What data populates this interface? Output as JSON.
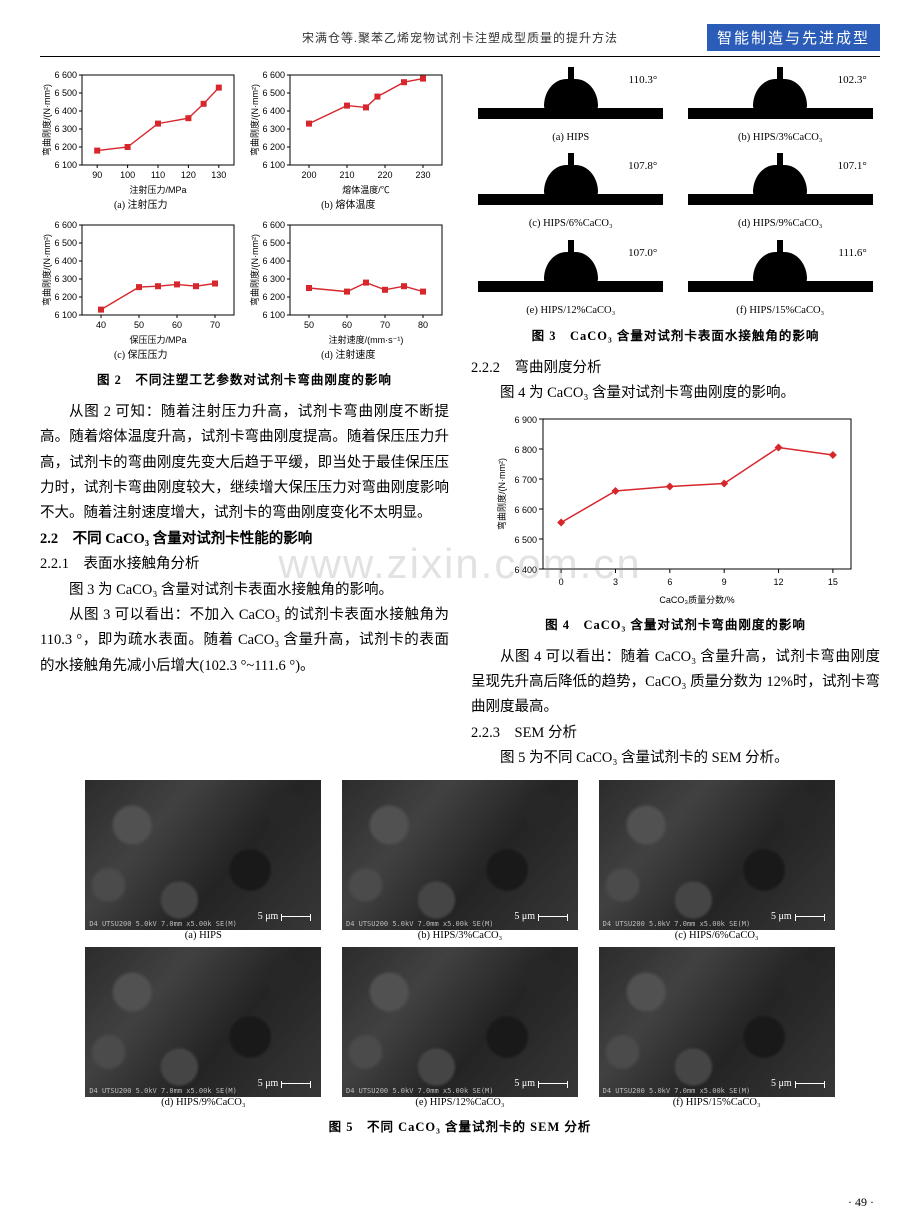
{
  "header": {
    "title": "宋满仓等.聚苯乙烯宠物试剂卡注塑成型质量的提升方法",
    "badge": "智能制造与先进成型"
  },
  "watermark": "www.zixin.com.cn",
  "page_number": "· 49 ·",
  "fig2": {
    "caption": "图 2　不同注塑工艺参数对试剂卡弯曲刚度的影响",
    "ylabel": "弯曲刚度/(N·mm²)",
    "panels": {
      "a": {
        "sub": "(a) 注射压力",
        "xlabel": "注射压力/MPa",
        "xticks": [
          90,
          100,
          110,
          120,
          130
        ],
        "yticks": [
          6100,
          6200,
          6300,
          6400,
          6500,
          6600
        ],
        "ylim": [
          6100,
          6600
        ],
        "xlim": [
          85,
          135
        ],
        "points": [
          [
            90,
            6180
          ],
          [
            100,
            6200
          ],
          [
            110,
            6330
          ],
          [
            120,
            6360
          ],
          [
            125,
            6440
          ],
          [
            130,
            6530
          ]
        ],
        "color": "#d7262c"
      },
      "b": {
        "sub": "(b) 熔体温度",
        "xlabel": "熔体温度/℃",
        "xticks": [
          200,
          210,
          220,
          230
        ],
        "yticks": [
          6100,
          6200,
          6300,
          6400,
          6500,
          6600
        ],
        "ylim": [
          6100,
          6600
        ],
        "xlim": [
          195,
          235
        ],
        "points": [
          [
            200,
            6330
          ],
          [
            210,
            6430
          ],
          [
            215,
            6420
          ],
          [
            218,
            6480
          ],
          [
            225,
            6560
          ],
          [
            230,
            6580
          ]
        ],
        "color": "#d7262c"
      },
      "c": {
        "sub": "(c) 保压压力",
        "xlabel": "保压压力/MPa",
        "xticks": [
          40,
          50,
          60,
          70
        ],
        "yticks": [
          6100,
          6200,
          6300,
          6400,
          6500,
          6600
        ],
        "ylim": [
          6100,
          6600
        ],
        "xlim": [
          35,
          75
        ],
        "points": [
          [
            40,
            6130
          ],
          [
            50,
            6255
          ],
          [
            55,
            6260
          ],
          [
            60,
            6270
          ],
          [
            65,
            6260
          ],
          [
            70,
            6275
          ]
        ],
        "color": "#d7262c"
      },
      "d": {
        "sub": "(d) 注射速度",
        "xlabel": "注射速度/(mm·s⁻¹)",
        "xticks": [
          50,
          60,
          70,
          80
        ],
        "yticks": [
          6100,
          6200,
          6300,
          6400,
          6500,
          6600
        ],
        "ylim": [
          6100,
          6600
        ],
        "xlim": [
          45,
          85
        ],
        "points": [
          [
            50,
            6250
          ],
          [
            60,
            6230
          ],
          [
            65,
            6280
          ],
          [
            70,
            6240
          ],
          [
            75,
            6260
          ],
          [
            80,
            6230
          ]
        ],
        "color": "#d7262c"
      }
    }
  },
  "left_text": {
    "p1": "从图 2 可知：随着注射压力升高，试剂卡弯曲刚度不断提高。随着熔体温度升高，试剂卡弯曲刚度提高。随着保压压力升高，试剂卡的弯曲刚度先变大后趋于平缓，即当处于最佳保压压力时，试剂卡弯曲刚度较大，继续增大保压压力对弯曲刚度影响不大。随着注射速度增大，试剂卡的弯曲刚度变化不太明显。",
    "sec22": "2.2　不同 CaCO₃ 含量对试剂卡性能的影响",
    "sec221": "2.2.1　表面水接触角分析",
    "p2": "图 3 为 CaCO₃ 含量对试剂卡表面水接触角的影响。",
    "p3": "从图 3 可以看出：不加入 CaCO₃ 的试剂卡表面水接触角为 110.3 °，即为疏水表面。随着 CaCO₃ 含量升高，试剂卡的表面的水接触角先减小后增大(102.3 °~111.6 °)。"
  },
  "fig3": {
    "caption": "图 3　CaCO₃ 含量对试剂卡表面水接触角的影响",
    "cells": [
      {
        "label": "(a) HIPS",
        "angle": "110.3°"
      },
      {
        "label": "(b) HIPS/3%CaCO₃",
        "angle": "102.3°"
      },
      {
        "label": "(c) HIPS/6%CaCO₃",
        "angle": "107.8°"
      },
      {
        "label": "(d) HIPS/9%CaCO₃",
        "angle": "107.1°"
      },
      {
        "label": "(e) HIPS/12%CaCO₃",
        "angle": "107.0°"
      },
      {
        "label": "(f) HIPS/15%CaCO₃",
        "angle": "111.6°"
      }
    ]
  },
  "right_text": {
    "sec222": "2.2.2　弯曲刚度分析",
    "p1": "图 4 为 CaCO₃ 含量对试剂卡弯曲刚度的影响。",
    "p2": "从图 4 可以看出：随着 CaCO₃ 含量升高，试剂卡弯曲刚度呈现先升高后降低的趋势，CaCO₃ 质量分数为 12%时，试剂卡弯曲刚度最高。",
    "sec223": "2.2.3　SEM 分析",
    "p3": "图 5 为不同 CaCO₃ 含量试剂卡的 SEM 分析。"
  },
  "fig4": {
    "caption": "图 4　CaCO₃ 含量对试剂卡弯曲刚度的影响",
    "type": "line",
    "ylabel": "弯曲刚度/(N·mm²)",
    "xlabel": "CaCO₃质量分数/%",
    "xticks": [
      0,
      3,
      6,
      9,
      12,
      15
    ],
    "yticks": [
      6400,
      6500,
      6600,
      6700,
      6800,
      6900
    ],
    "xlim": [
      -1,
      16
    ],
    "ylim": [
      6400,
      6900
    ],
    "points": [
      [
        0,
        6555
      ],
      [
        3,
        6660
      ],
      [
        6,
        6675
      ],
      [
        9,
        6685
      ],
      [
        12,
        6805
      ],
      [
        15,
        6780
      ]
    ],
    "color": "#d7262c",
    "marker": "diamond",
    "marker_size": 8,
    "line_width": 1.5,
    "background_color": "#ffffff",
    "axis_color": "#000000"
  },
  "fig5": {
    "caption": "图 5　不同 CaCO₃ 含量试剂卡的 SEM 分析",
    "scale_label": "5 μm",
    "info_text": "D4 UTSU200 5.0kV 7.0mm x5.00k SE(M)",
    "cells": [
      {
        "label": "(a) HIPS"
      },
      {
        "label": "(b) HIPS/3%CaCO₃"
      },
      {
        "label": "(c) HIPS/6%CaCO₃"
      },
      {
        "label": "(d) HIPS/9%CaCO₃"
      },
      {
        "label": "(e) HIPS/12%CaCO₃"
      },
      {
        "label": "(f) HIPS/15%CaCO₃"
      }
    ]
  }
}
